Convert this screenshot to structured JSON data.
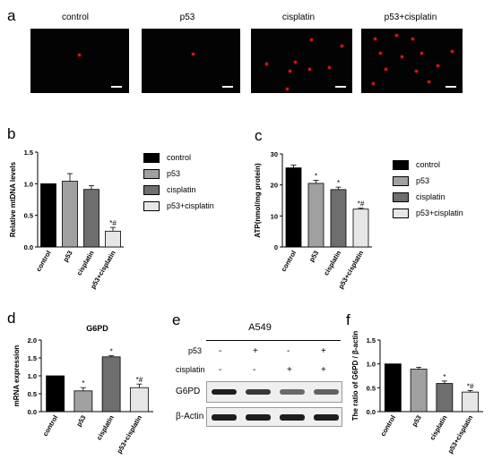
{
  "panels": {
    "a": "a",
    "b": "b",
    "c": "c",
    "d": "d",
    "e": "e",
    "f": "f"
  },
  "microscopy": {
    "labels": [
      "control",
      "p53",
      "cisplatin",
      "p53+cisplatin"
    ]
  },
  "colors": {
    "control": "#000000",
    "p53": "#a0a0a0",
    "cisplatin": "#6e6e6e",
    "p53_cisplatin": "#e6e6e6",
    "fluorescence": "#e8141c"
  },
  "legend_b": [
    "control",
    "p53",
    "cisplatin",
    "p53+cisplatin"
  ],
  "legend_c": [
    "control",
    "p53",
    "cisplatin",
    "p53+cisplatin"
  ],
  "western": {
    "title": "A549",
    "row_labels": [
      "p53",
      "cisplatin"
    ],
    "p53_signs": [
      "-",
      "+",
      "-",
      "+"
    ],
    "cisplatin_signs": [
      "-",
      "-",
      "+",
      "+"
    ],
    "band_labels": [
      "G6PD",
      "β-Actin"
    ],
    "g6pd_intensity": [
      1.0,
      0.85,
      0.55,
      0.6
    ],
    "actin_intensity": [
      1.0,
      1.0,
      1.0,
      1.0
    ]
  },
  "chart_data": [
    {
      "id": "b",
      "type": "bar",
      "categories": [
        "control",
        "p53",
        "cisplatin",
        "p53+cisplatin"
      ],
      "values": [
        1.0,
        1.04,
        0.91,
        0.25
      ],
      "errors": [
        0,
        0.12,
        0.06,
        0.06
      ],
      "annotations": [
        "",
        "",
        "",
        "*#"
      ],
      "ylabel": "Relative mtDNA levels",
      "ylim": [
        0,
        1.5
      ],
      "yticks": [
        "0.0",
        "0.5",
        "1.0",
        "1.5"
      ],
      "ytick_values": [
        0,
        0.5,
        1.0,
        1.5
      ]
    },
    {
      "id": "c",
      "type": "bar",
      "categories": [
        "control",
        "p53",
        "cisplatin",
        "p53+cisplatin"
      ],
      "values": [
        25.5,
        20.5,
        18.5,
        12.2
      ],
      "errors": [
        0.9,
        1.0,
        0.8,
        0.3
      ],
      "annotations": [
        "",
        "*",
        "*",
        "*#"
      ],
      "ylabel": "ATP(nmol/mg protein)",
      "ylim": [
        0,
        30
      ],
      "yticks": [
        "0",
        "10",
        "20",
        "30"
      ],
      "ytick_values": [
        0,
        10,
        20,
        30
      ]
    },
    {
      "id": "d",
      "type": "bar",
      "title": "G6PD",
      "categories": [
        "control",
        "p53",
        "cisplatin",
        "p53+cisplatin"
      ],
      "values": [
        1.0,
        0.58,
        1.53,
        0.67
      ],
      "errors": [
        0,
        0.09,
        0.03,
        0.1
      ],
      "annotations": [
        "",
        "*",
        "*",
        "*#"
      ],
      "ylabel": "mRNA expression",
      "ylim": [
        0,
        2.0
      ],
      "yticks": [
        "0.0",
        "0.5",
        "1.0",
        "1.5",
        "2.0"
      ],
      "ytick_values": [
        0,
        0.5,
        1.0,
        1.5,
        2.0
      ]
    },
    {
      "id": "f",
      "type": "bar",
      "categories": [
        "control",
        "p53",
        "cisplatin",
        "p53+cisplatin"
      ],
      "values": [
        1.0,
        0.89,
        0.59,
        0.41
      ],
      "errors": [
        0,
        0.04,
        0.05,
        0.03
      ],
      "annotations": [
        "",
        "",
        "*",
        "*#"
      ],
      "ylabel": "The ratio of G6PD / β-actin",
      "ylim": [
        0,
        1.5
      ],
      "yticks": [
        "0.0",
        "0.5",
        "1.0",
        "1.5"
      ],
      "ytick_values": [
        0,
        0.5,
        1.0,
        1.5
      ]
    }
  ]
}
